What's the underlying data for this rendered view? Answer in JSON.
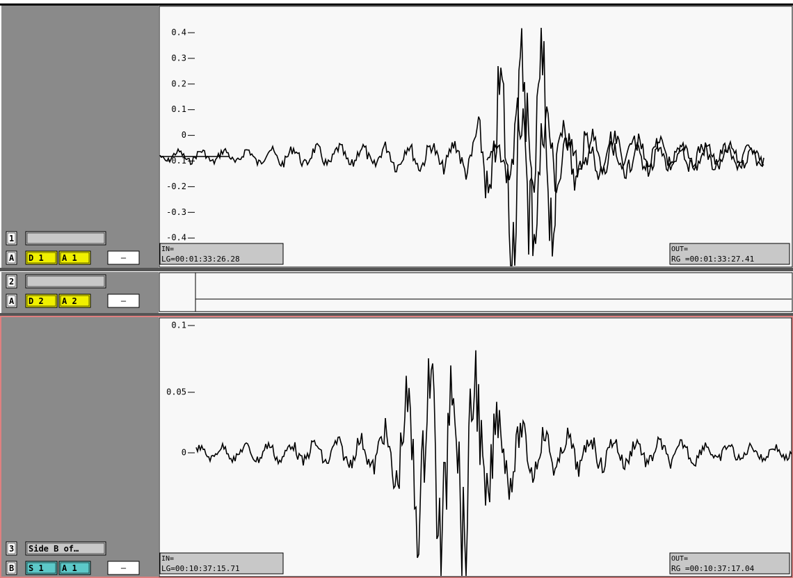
{
  "tracks": [
    {
      "number": "1",
      "name": "",
      "channel": "A",
      "buttons": [
        "D 1",
        "A 1"
      ],
      "minus": "–",
      "ticks": [
        "0.4",
        "0.3",
        "0.2",
        "0.1",
        "0",
        "-0.1",
        "-0.2",
        "-0.3",
        "-0.4"
      ],
      "in_label": "IN=",
      "in_time": "LG=00:01:33:26.28",
      "out_label": "OUT=",
      "out_time": "RG =00:01:33:27.41"
    },
    {
      "number": "2",
      "name": "",
      "channel": "A",
      "buttons": [
        "D 2",
        "A 2"
      ],
      "minus": "–"
    },
    {
      "number": "3",
      "name": "Side B of…",
      "channel": "B",
      "buttons": [
        "S 1",
        "A 1"
      ],
      "minus": "–",
      "ticks": [
        "0.1",
        "0.05",
        "0"
      ],
      "in_label": "IN=",
      "in_time": "LG=00:10:37:15.71",
      "out_label": "OUT=",
      "out_time": "RG =00:10:37:17.04"
    }
  ]
}
